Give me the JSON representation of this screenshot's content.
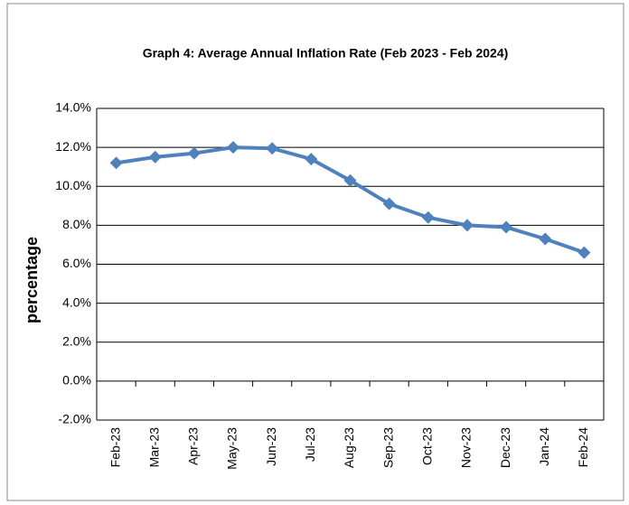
{
  "chart_data": {
    "type": "line",
    "title": "Graph 4: Average Annual Inflation Rate (Feb 2023 - Feb 2024)",
    "y_label": "percentage",
    "categories": [
      "Feb-23",
      "Mar-23",
      "Apr-23",
      "May-23",
      "Jun-23",
      "Jul-23",
      "Aug-23",
      "Sep-23",
      "Oct-23",
      "Nov-23",
      "Dec-23",
      "Jan-24",
      "Feb-24"
    ],
    "series": [
      {
        "color": "#4f81bd",
        "values": [
          11.2,
          11.5,
          11.7,
          12.0,
          11.95,
          11.4,
          10.3,
          9.1,
          8.4,
          8.0,
          7.9,
          7.3,
          6.6
        ]
      }
    ],
    "ylim": [
      -2,
      14
    ],
    "yticks": [
      {
        "value": -2,
        "label": "-2.0%"
      },
      {
        "value": 0,
        "label": "0.0%"
      },
      {
        "value": 2,
        "label": "2.0%"
      },
      {
        "value": 4,
        "label": "4.0%"
      },
      {
        "value": 6,
        "label": "6.0%"
      },
      {
        "value": 8,
        "label": "8.0%"
      },
      {
        "value": 10,
        "label": "10.0%"
      },
      {
        "value": 12,
        "label": "12.0%"
      },
      {
        "value": 14,
        "label": "14.0%"
      }
    ],
    "grid": true
  }
}
